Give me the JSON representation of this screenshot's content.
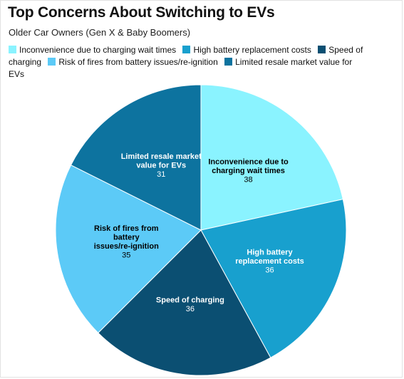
{
  "chart_data": {
    "type": "pie",
    "title": "Top Concerns About Switching to EVs",
    "subtitle": "Older Car Owners (Gen X & Baby Boomers)",
    "legend_position": "top",
    "slices": [
      {
        "label": "Inconvenience due to charging wait times",
        "value": 38,
        "color": "#8af3ff",
        "text_color": "#000000",
        "chart_label_lines": [
          "Inconvenience due to",
          "charging wait times"
        ]
      },
      {
        "label": "High battery replacement costs",
        "value": 36,
        "color": "#18a0ce",
        "text_color": "#ffffff",
        "chart_label_lines": [
          "High battery",
          "replacement costs"
        ]
      },
      {
        "label": "Speed of charging",
        "value": 36,
        "color": "#0b4f72",
        "text_color": "#ffffff",
        "chart_label_lines": [
          "Speed of charging"
        ]
      },
      {
        "label": "Risk of fires from battery issues/re-ignition",
        "value": 35,
        "color": "#5ccaf7",
        "text_color": "#000000",
        "chart_label_lines": [
          "Risk of fires from",
          "battery",
          "issues/re-ignition"
        ]
      },
      {
        "label": "Limited resale market value for EVs",
        "value": 31,
        "color": "#0d739f",
        "text_color": "#ffffff",
        "chart_label_lines": [
          "Limited resale market",
          "value for EVs"
        ]
      }
    ]
  }
}
